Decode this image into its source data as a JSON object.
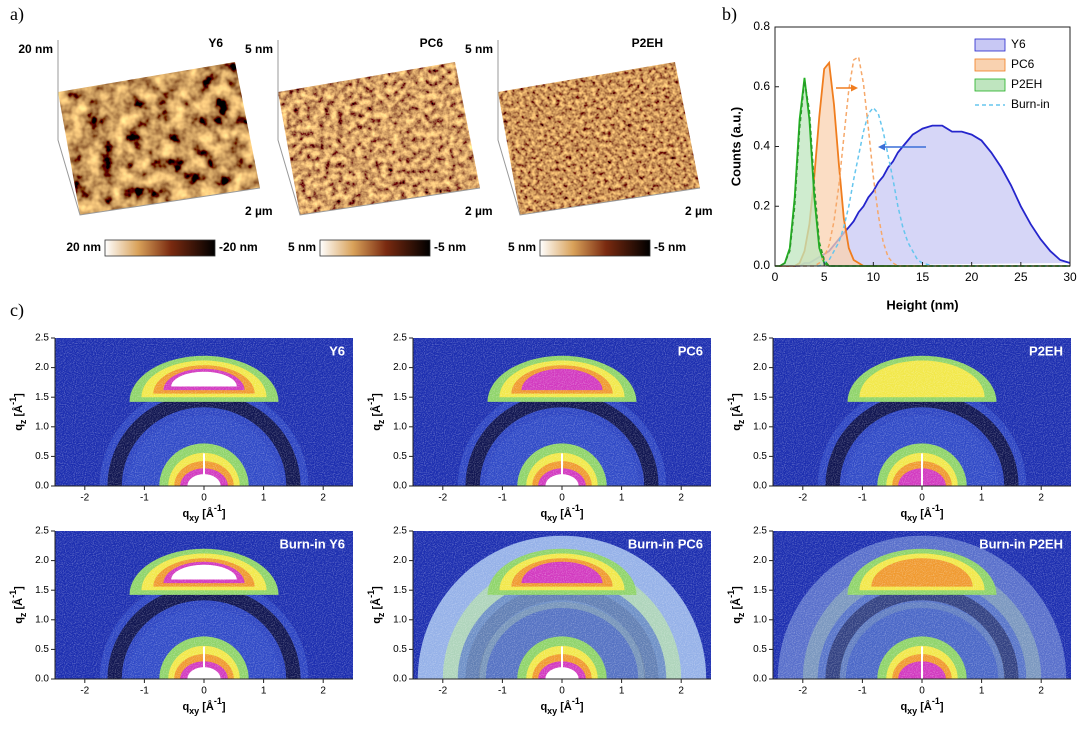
{
  "panel_labels": {
    "a": "a)",
    "b": "b)",
    "c": "c)"
  },
  "afm": [
    {
      "name": "Y6",
      "z_label": "20 nm",
      "x_label": "2 µm",
      "bar_min": "20 nm",
      "bar_max": "-20 nm"
    },
    {
      "name": "PC6",
      "z_label": "5 nm",
      "x_label": "2 µm",
      "bar_min": "5 nm",
      "bar_max": "-5 nm"
    },
    {
      "name": "P2EH",
      "z_label": "5 nm",
      "x_label": "2 µm",
      "bar_min": "5 nm",
      "bar_max": "-5 nm"
    }
  ],
  "chart_data": {
    "type": "line",
    "xlabel": "Height (nm)",
    "ylabel": "Counts (a.u.)",
    "x": [
      0,
      0.5,
      1,
      1.5,
      2,
      2.5,
      3,
      3.5,
      4,
      4.5,
      5,
      5.5,
      6,
      6.5,
      7,
      7.5,
      8,
      8.5,
      9,
      9.5,
      10,
      10.5,
      11,
      11.5,
      12,
      12.5,
      13,
      13.5,
      14,
      14.5,
      15,
      16,
      17,
      18,
      19,
      20,
      21,
      22,
      23,
      24,
      25,
      26,
      27,
      28,
      29,
      30
    ],
    "xlim": [
      0,
      30
    ],
    "xticks": [
      0,
      5,
      10,
      15,
      20,
      25,
      30
    ],
    "ylim": [
      0,
      0.8
    ],
    "yticks": [
      {
        "value": 0,
        "label": "0.0"
      },
      0.2,
      0.4,
      0.6,
      0.8
    ],
    "legend": "upper right",
    "series": [
      {
        "name": "Y6",
        "color": "#2525cc",
        "fill": "#c8c8f4",
        "values": [
          0,
          0,
          0,
          0,
          0,
          0,
          0.01,
          0.01,
          0.02,
          0.03,
          0.04,
          0.05,
          0.07,
          0.09,
          0.11,
          0.13,
          0.15,
          0.18,
          0.2,
          0.23,
          0.25,
          0.28,
          0.3,
          0.33,
          0.35,
          0.38,
          0.4,
          0.42,
          0.44,
          0.45,
          0.46,
          0.47,
          0.47,
          0.45,
          0.45,
          0.44,
          0.42,
          0.38,
          0.33,
          0.27,
          0.2,
          0.14,
          0.09,
          0.05,
          0.02,
          0.01
        ]
      },
      {
        "name": "PC6",
        "color": "#f07d1e",
        "fill": "#f9d2b0",
        "values": [
          0,
          0,
          0,
          0,
          0,
          0.01,
          0.05,
          0.14,
          0.3,
          0.5,
          0.66,
          0.68,
          0.54,
          0.34,
          0.16,
          0.06,
          0.02,
          0.01,
          0,
          0,
          0,
          0,
          0,
          0,
          0,
          0,
          0,
          0,
          0,
          0,
          0,
          0,
          0,
          0,
          0,
          0,
          0,
          0,
          0,
          0,
          0,
          0,
          0,
          0,
          0,
          0
        ]
      },
      {
        "name": "P2EH",
        "color": "#22b022",
        "fill": "#bfe5bf",
        "values": [
          0,
          0,
          0.01,
          0.06,
          0.23,
          0.49,
          0.63,
          0.49,
          0.23,
          0.06,
          0.01,
          0,
          0,
          0,
          0,
          0,
          0,
          0,
          0,
          0,
          0,
          0,
          0,
          0,
          0,
          0,
          0,
          0,
          0,
          0,
          0,
          0,
          0,
          0,
          0,
          0,
          0,
          0,
          0,
          0,
          0,
          0,
          0,
          0,
          0,
          0
        ]
      }
    ],
    "burn_in": {
      "name": "Burn-in",
      "color": "#66c6ee",
      "curves": [
        {
          "color": "#66c6ee",
          "values": [
            0,
            0,
            0,
            0,
            0,
            0,
            0,
            0,
            0,
            0,
            0.01,
            0.02,
            0.05,
            0.08,
            0.13,
            0.2,
            0.29,
            0.37,
            0.45,
            0.51,
            0.53,
            0.51,
            0.45,
            0.37,
            0.29,
            0.2,
            0.13,
            0.08,
            0.05,
            0.02,
            0.01,
            0,
            0,
            0,
            0,
            0,
            0,
            0,
            0,
            0,
            0,
            0,
            0,
            0,
            0,
            0
          ]
        },
        {
          "color": "#f6a86a",
          "values": [
            0,
            0,
            0,
            0,
            0,
            0,
            0,
            0,
            0,
            0.01,
            0.03,
            0.07,
            0.15,
            0.27,
            0.43,
            0.59,
            0.69,
            0.7,
            0.61,
            0.46,
            0.3,
            0.17,
            0.08,
            0.03,
            0.01,
            0,
            0,
            0,
            0,
            0,
            0,
            0,
            0,
            0,
            0,
            0,
            0,
            0,
            0,
            0,
            0,
            0,
            0,
            0,
            0,
            0
          ]
        },
        {
          "color": "#2a9a2a",
          "values": [
            0,
            0,
            0.01,
            0.05,
            0.2,
            0.46,
            0.62,
            0.52,
            0.27,
            0.08,
            0.02,
            0,
            0,
            0,
            0,
            0,
            0,
            0,
            0,
            0,
            0,
            0,
            0,
            0,
            0,
            0,
            0,
            0,
            0,
            0,
            0,
            0,
            0,
            0,
            0,
            0,
            0,
            0,
            0,
            0,
            0,
            0,
            0,
            0,
            0,
            0
          ]
        }
      ]
    }
  },
  "giwaxs": {
    "xlim": [
      -2.5,
      2.5
    ],
    "ylim": [
      0,
      2.5
    ],
    "xticks": [
      -2,
      -1,
      0,
      1,
      2
    ],
    "yticks": [
      {
        "value": 0,
        "label": "0.0"
      },
      0.5,
      {
        "value": 1,
        "label": "1.0"
      },
      1.5,
      {
        "value": 2,
        "label": "2.0"
      },
      2.5
    ],
    "xlabel": [
      "q",
      "xy",
      " [Å",
      "-1",
      "]"
    ],
    "ylabel": [
      "q",
      "z",
      " [Å",
      "-1",
      "]"
    ],
    "panels": [
      "Y6",
      "PC6",
      "P2EH",
      "Burn-in Y6",
      "Burn-in PC6",
      "Burn-in P2EH"
    ]
  }
}
